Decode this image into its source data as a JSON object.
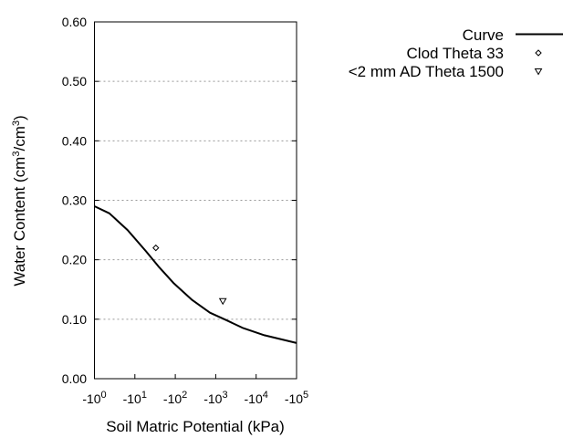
{
  "chart_data": {
    "type": "line",
    "xlabel": "Soil Matric Potential (kPa)",
    "ylabel": {
      "prefix": "Water Content (cm",
      "sup1": "3",
      "mid": "/cm",
      "sup2": "3",
      "suffix": ")"
    },
    "x_scale": "log",
    "xlim": [
      1,
      100000
    ],
    "ylim": [
      0,
      0.6
    ],
    "x_ticks": [
      {
        "value": 1,
        "base": "-10",
        "exp": "0"
      },
      {
        "value": 10,
        "base": "-10",
        "exp": "1"
      },
      {
        "value": 100,
        "base": "-10",
        "exp": "2"
      },
      {
        "value": 1000,
        "base": "-10",
        "exp": "3"
      },
      {
        "value": 10000,
        "base": "-10",
        "exp": "4"
      },
      {
        "value": 100000,
        "base": "-10",
        "exp": "5"
      }
    ],
    "y_ticks": [
      {
        "value": 0,
        "label": "0.00"
      },
      {
        "value": 0.1,
        "label": "0.10"
      },
      {
        "value": 0.2,
        "label": "0.20"
      },
      {
        "value": 0.3,
        "label": "0.30"
      },
      {
        "value": 0.4,
        "label": "0.40"
      },
      {
        "value": 0.5,
        "label": "0.50"
      },
      {
        "value": 0.6,
        "label": "0.60"
      }
    ],
    "grid": "horizontal dotted",
    "legend_position": "top-right outside",
    "series": [
      {
        "name": "Curve",
        "kind": "line",
        "color": "#000000",
        "x": [
          1,
          2.35,
          6.6,
          19,
          38,
          90,
          253,
          720,
          1700,
          4800,
          16000,
          100000
        ],
        "y": [
          0.29,
          0.278,
          0.25,
          0.214,
          0.189,
          0.161,
          0.133,
          0.111,
          0.0995,
          0.085,
          0.073,
          0.06
        ]
      },
      {
        "name": "Clod Theta 33",
        "kind": "marker",
        "marker": "diamond",
        "x": [
          33
        ],
        "y": [
          0.22
        ]
      },
      {
        "name": "<2 mm AD Theta 1500",
        "kind": "marker",
        "marker": "triangle-down",
        "x": [
          1500
        ],
        "y": [
          0.13
        ]
      }
    ]
  }
}
